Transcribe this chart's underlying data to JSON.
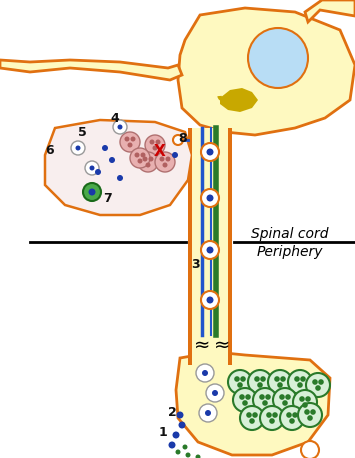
{
  "bg_color": "#ffffff",
  "neuron_color": "#fef9c0",
  "neuron_border": "#e07010",
  "nucleus_color": "#b8ddf5",
  "golgi_color": "#c8a800",
  "axon_orange": "#e07010",
  "axon_blue": "#2255cc",
  "axon_green": "#2a7a2a",
  "vesicle_fill": "#d8f0d8",
  "vesicle_border": "#2a7a2a",
  "blue_dot": "#1a3aaa",
  "red_x": "#cc0000",
  "pink_vesicle": "#e8b0b0",
  "pink_border": "#b07070",
  "green_circle": "#4aaa4a",
  "spinal_cord_text": "Spinal cord",
  "periphery_text": "Periphery",
  "approx": "≈",
  "label_color": "#111111"
}
